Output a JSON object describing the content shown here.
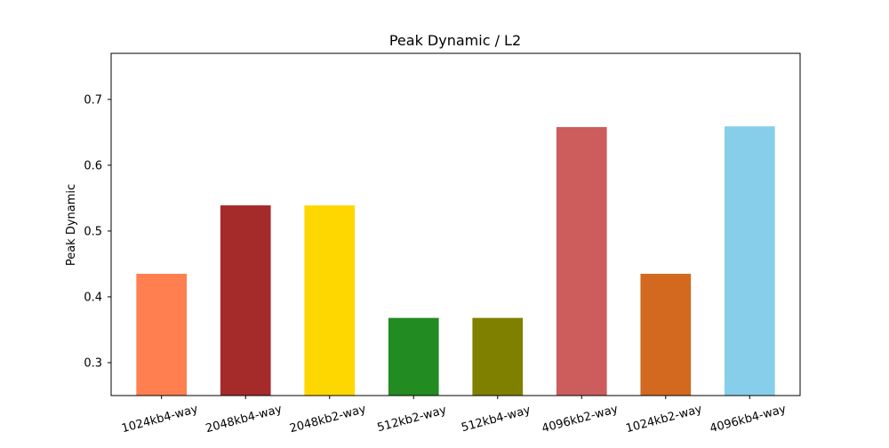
{
  "chart_data": {
    "type": "bar",
    "title": "Peak Dynamic / L2",
    "xlabel": "",
    "ylabel": "Peak Dynamic",
    "ylim": [
      0.25,
      0.77
    ],
    "yticks": [
      0.3,
      0.4,
      0.5,
      0.6,
      0.7
    ],
    "ytick_labels": [
      "0.3",
      "0.4",
      "0.5",
      "0.6",
      "0.7"
    ],
    "grid": false,
    "legend": "none",
    "categories": [
      "1024kb4-way",
      "2048kb4-way",
      "2048kb2-way",
      "512kb2-way",
      "512kb4-way",
      "4096kb2-way",
      "1024kb2-way",
      "4096kb4-way"
    ],
    "values": [
      0.435,
      0.539,
      0.539,
      0.368,
      0.368,
      0.658,
      0.435,
      0.659
    ],
    "colors": [
      "#ff7f50",
      "#a52a2a",
      "#ffd700",
      "#228b22",
      "#808000",
      "#cd5c5c",
      "#d2691e",
      "#87ceeb"
    ]
  }
}
